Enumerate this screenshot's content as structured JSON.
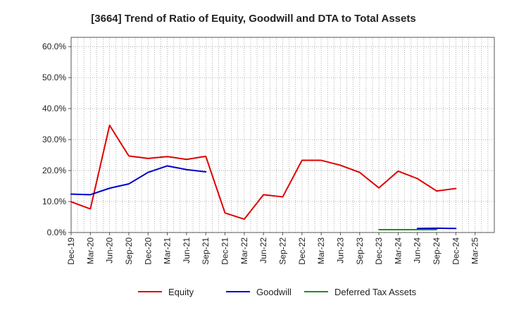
{
  "chart_data": {
    "type": "line",
    "title": "[3664]  Trend of Ratio of Equity, Goodwill and DTA to Total Assets",
    "xlabel": "",
    "ylabel": "",
    "ylim": [
      0,
      0.63
    ],
    "y_ticks": [
      0.0,
      0.1,
      0.2,
      0.3,
      0.4,
      0.5,
      0.6
    ],
    "y_tick_labels": [
      "0.0%",
      "10.0%",
      "20.0%",
      "30.0%",
      "40.0%",
      "50.0%",
      "60.0%"
    ],
    "categories": [
      "Dec-19",
      "Mar-20",
      "Jun-20",
      "Sep-20",
      "Dec-20",
      "Mar-21",
      "Jun-21",
      "Sep-21",
      "Dec-21",
      "Mar-22",
      "Jun-22",
      "Sep-22",
      "Dec-22",
      "Mar-23",
      "Jun-23",
      "Sep-23",
      "Dec-23",
      "Mar-24",
      "Jun-24",
      "Sep-24",
      "Dec-24",
      "Mar-25"
    ],
    "grid": true,
    "legend_position": "bottom",
    "series": [
      {
        "name": "Equity",
        "color": "#e00000",
        "values": [
          0.099,
          0.076,
          0.346,
          0.247,
          0.239,
          0.245,
          0.236,
          0.246,
          0.063,
          0.043,
          0.122,
          0.115,
          0.233,
          0.233,
          0.217,
          0.194,
          0.144,
          0.198,
          0.174,
          0.134,
          0.142,
          null
        ]
      },
      {
        "name": "Goodwill",
        "color": "#0000cc",
        "values": [
          0.124,
          0.122,
          0.143,
          0.157,
          0.194,
          0.215,
          0.203,
          0.196,
          null,
          null,
          null,
          null,
          null,
          null,
          null,
          null,
          null,
          null,
          0.013,
          0.014,
          0.013,
          null
        ]
      },
      {
        "name": "Deferred Tax Assets",
        "color": "#228b22",
        "values": [
          null,
          null,
          null,
          null,
          null,
          null,
          null,
          null,
          null,
          null,
          null,
          null,
          null,
          null,
          null,
          null,
          0.009,
          0.009,
          0.009,
          0.009,
          null,
          null
        ]
      }
    ]
  }
}
